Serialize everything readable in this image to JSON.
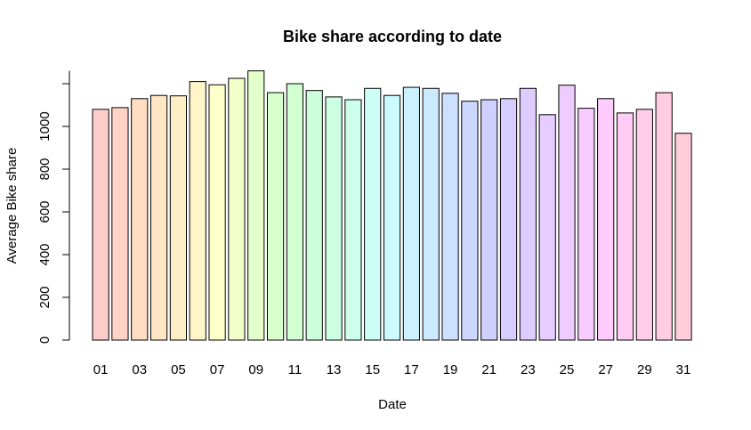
{
  "chart_data": {
    "type": "bar",
    "title": "Bike share according to date",
    "xlabel": "Date",
    "ylabel": "Average Bike share",
    "categories": [
      "01",
      "02",
      "03",
      "04",
      "05",
      "06",
      "07",
      "08",
      "09",
      "10",
      "11",
      "12",
      "13",
      "14",
      "15",
      "16",
      "17",
      "18",
      "19",
      "20",
      "21",
      "22",
      "23",
      "24",
      "25",
      "26",
      "27",
      "28",
      "29",
      "30",
      "31"
    ],
    "x_tick_labels_shown": [
      "01",
      "03",
      "05",
      "07",
      "09",
      "11",
      "13",
      "15",
      "17",
      "19",
      "21",
      "23",
      "25",
      "27",
      "29",
      "31"
    ],
    "values": [
      1080,
      1088,
      1130,
      1145,
      1143,
      1210,
      1195,
      1225,
      1260,
      1158,
      1200,
      1168,
      1138,
      1125,
      1178,
      1145,
      1183,
      1178,
      1155,
      1118,
      1125,
      1130,
      1178,
      1055,
      1193,
      1085,
      1130,
      1063,
      1080,
      1158,
      968
    ],
    "y_ticks": [
      0,
      200,
      400,
      600,
      800,
      1000
    ],
    "ylim": [
      0,
      1260
    ],
    "grid": false,
    "legend": "none",
    "colors": [
      "#FFCCCC",
      "#FFD4C6",
      "#FFDDC2",
      "#FFE6C4",
      "#FFEDC6",
      "#FFF5C8",
      "#FCFFC8",
      "#F2FFC8",
      "#E4FFCC",
      "#D9FFCC",
      "#D1FFD1",
      "#CCFFD9",
      "#CCFFE2",
      "#CCFFEC",
      "#CCFFF5",
      "#CCFBFF",
      "#CCF2FF",
      "#CCEAFF",
      "#CCE0FF",
      "#CCD7FF",
      "#D0D0FF",
      "#D7CCFF",
      "#DECCFF",
      "#E6CCFF",
      "#EECCFF",
      "#F6CCFF",
      "#FFCCFD",
      "#FFCCF4",
      "#FFCCEA",
      "#FFCCE1",
      "#FFCCD9"
    ]
  }
}
